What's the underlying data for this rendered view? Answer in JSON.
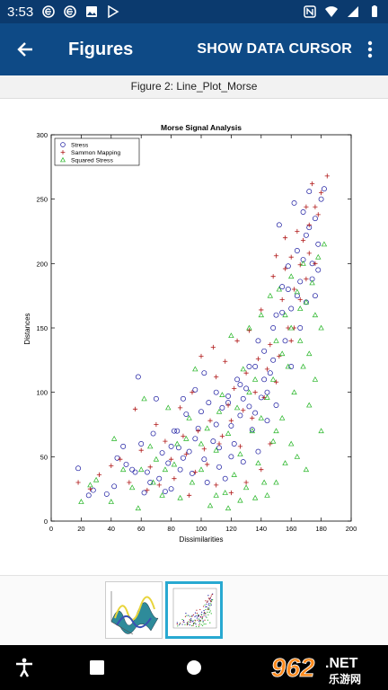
{
  "status_bar": {
    "time": "3:53",
    "left_icons": [
      "e-notification-icon",
      "e-notification-icon",
      "image-notification-icon",
      "play-store-icon"
    ],
    "right_icons": [
      "nfc-icon",
      "wifi-icon",
      "signal-icon",
      "battery-icon"
    ]
  },
  "app_bar": {
    "title": "Figures",
    "action_label": "SHOW DATA CURSOR",
    "background": "#0e4a86"
  },
  "figure": {
    "caption": "Figure 2: Line_Plot_Morse"
  },
  "chart_data": {
    "type": "scatter",
    "title": "Morse Signal Analysis",
    "xlabel": "Dissimilarities",
    "ylabel": "Distances",
    "xlim": [
      0,
      200
    ],
    "ylim": [
      0,
      300
    ],
    "xticks": [
      0,
      20,
      40,
      60,
      80,
      100,
      120,
      140,
      160,
      180,
      200
    ],
    "yticks": [
      0,
      50,
      100,
      150,
      200,
      250,
      300
    ],
    "grid": false,
    "legend": "top-left",
    "series": [
      {
        "name": "Stress",
        "marker": "circle",
        "color": "#1a1aa0",
        "points": [
          [
            18,
            41
          ],
          [
            25,
            20
          ],
          [
            28,
            24
          ],
          [
            37,
            21
          ],
          [
            42,
            27
          ],
          [
            44,
            49
          ],
          [
            50,
            44
          ],
          [
            56,
            38
          ],
          [
            58,
            112
          ],
          [
            62,
            22
          ],
          [
            66,
            30
          ],
          [
            68,
            68
          ],
          [
            70,
            95
          ],
          [
            74,
            53
          ],
          [
            76,
            23
          ],
          [
            80,
            25
          ],
          [
            82,
            70
          ],
          [
            85,
            57
          ],
          [
            88,
            49
          ],
          [
            90,
            83
          ],
          [
            94,
            37
          ],
          [
            96,
            64
          ],
          [
            100,
            85
          ],
          [
            102,
            48
          ],
          [
            105,
            92
          ],
          [
            108,
            62
          ],
          [
            110,
            75
          ],
          [
            112,
            57
          ],
          [
            114,
            88
          ],
          [
            116,
            33
          ],
          [
            118,
            97
          ],
          [
            120,
            74
          ],
          [
            122,
            60
          ],
          [
            124,
            110
          ],
          [
            126,
            82
          ],
          [
            128,
            46
          ],
          [
            130,
            103
          ],
          [
            132,
            89
          ],
          [
            134,
            71
          ],
          [
            136,
            120
          ],
          [
            138,
            54
          ],
          [
            140,
            96
          ],
          [
            142,
            132
          ],
          [
            144,
            78
          ],
          [
            146,
            115
          ],
          [
            148,
            150
          ],
          [
            150,
            160
          ],
          [
            152,
            230
          ],
          [
            154,
            182
          ],
          [
            156,
            140
          ],
          [
            158,
            198
          ],
          [
            160,
            165
          ],
          [
            162,
            247
          ],
          [
            164,
            210
          ],
          [
            166,
            186
          ],
          [
            168,
            240
          ],
          [
            170,
            222
          ],
          [
            172,
            256
          ],
          [
            174,
            200
          ],
          [
            176,
            235
          ],
          [
            178,
            215
          ],
          [
            180,
            250
          ],
          [
            182,
            258
          ],
          [
            170,
            170
          ],
          [
            166,
            150
          ],
          [
            160,
            120
          ],
          [
            150,
            90
          ],
          [
            144,
            100
          ],
          [
            136,
            84
          ],
          [
            128,
            95
          ],
          [
            120,
            50
          ],
          [
            112,
            42
          ],
          [
            104,
            30
          ],
          [
            98,
            72
          ],
          [
            92,
            54
          ],
          [
            86,
            40
          ],
          [
            80,
            58
          ],
          [
            72,
            33
          ],
          [
            64,
            38
          ],
          [
            54,
            40
          ],
          [
            48,
            58
          ],
          [
            178,
            195
          ],
          [
            176,
            175
          ],
          [
            174,
            188
          ],
          [
            172,
            228
          ],
          [
            168,
            203
          ],
          [
            164,
            175
          ],
          [
            158,
            180
          ],
          [
            154,
            162
          ],
          [
            148,
            125
          ],
          [
            142,
            110
          ],
          [
            138,
            140
          ],
          [
            132,
            120
          ],
          [
            126,
            106
          ],
          [
            118,
            92
          ],
          [
            110,
            100
          ],
          [
            102,
            115
          ],
          [
            96,
            102
          ],
          [
            88,
            95
          ],
          [
            84,
            70
          ],
          [
            78,
            45
          ],
          [
            60,
            60
          ]
        ]
      },
      {
        "name": "Sammon Mapping",
        "marker": "plus",
        "color": "#b01818",
        "points": [
          [
            18,
            30
          ],
          [
            26,
            25
          ],
          [
            32,
            36
          ],
          [
            40,
            43
          ],
          [
            46,
            48
          ],
          [
            52,
            30
          ],
          [
            56,
            87
          ],
          [
            60,
            55
          ],
          [
            66,
            42
          ],
          [
            70,
            75
          ],
          [
            76,
            62
          ],
          [
            82,
            33
          ],
          [
            86,
            88
          ],
          [
            90,
            52
          ],
          [
            94,
            100
          ],
          [
            98,
            70
          ],
          [
            102,
            56
          ],
          [
            106,
            78
          ],
          [
            110,
            112
          ],
          [
            114,
            66
          ],
          [
            118,
            90
          ],
          [
            122,
            103
          ],
          [
            126,
            58
          ],
          [
            130,
            115
          ],
          [
            134,
            80
          ],
          [
            138,
            126
          ],
          [
            142,
            96
          ],
          [
            146,
            137
          ],
          [
            150,
            108
          ],
          [
            154,
            172
          ],
          [
            156,
            196
          ],
          [
            158,
            150
          ],
          [
            160,
            205
          ],
          [
            162,
            180
          ],
          [
            164,
            225
          ],
          [
            166,
            199
          ],
          [
            168,
            218
          ],
          [
            170,
            244
          ],
          [
            172,
            230
          ],
          [
            174,
            262
          ],
          [
            176,
            244
          ],
          [
            178,
            238
          ],
          [
            180,
            255
          ],
          [
            184,
            268
          ],
          [
            172,
            208
          ],
          [
            166,
            172
          ],
          [
            160,
            140
          ],
          [
            152,
            128
          ],
          [
            144,
            118
          ],
          [
            136,
            100
          ],
          [
            128,
            86
          ],
          [
            120,
            78
          ],
          [
            112,
            60
          ],
          [
            104,
            44
          ],
          [
            96,
            38
          ],
          [
            88,
            66
          ],
          [
            80,
            48
          ],
          [
            72,
            28
          ],
          [
            64,
            24
          ],
          [
            100,
            128
          ],
          [
            108,
            135
          ],
          [
            116,
            124
          ],
          [
            124,
            140
          ],
          [
            132,
            148
          ],
          [
            140,
            164
          ],
          [
            148,
            190
          ],
          [
            150,
            206
          ],
          [
            156,
            220
          ],
          [
            162,
            150
          ],
          [
            170,
            188
          ],
          [
            176,
            200
          ],
          [
            140,
            40
          ],
          [
            146,
            60
          ],
          [
            130,
            30
          ],
          [
            120,
            22
          ],
          [
            110,
            28
          ],
          [
            92,
            20
          ]
        ]
      },
      {
        "name": "Squared Stress",
        "marker": "triangle",
        "color": "#22b422",
        "points": [
          [
            20,
            15
          ],
          [
            26,
            28
          ],
          [
            30,
            32
          ],
          [
            40,
            15
          ],
          [
            42,
            64
          ],
          [
            48,
            40
          ],
          [
            54,
            26
          ],
          [
            58,
            10
          ],
          [
            62,
            95
          ],
          [
            66,
            58
          ],
          [
            70,
            48
          ],
          [
            74,
            20
          ],
          [
            78,
            88
          ],
          [
            82,
            44
          ],
          [
            86,
            18
          ],
          [
            90,
            64
          ],
          [
            94,
            30
          ],
          [
            96,
            118
          ],
          [
            100,
            40
          ],
          [
            104,
            72
          ],
          [
            106,
            12
          ],
          [
            110,
            55
          ],
          [
            114,
            98
          ],
          [
            116,
            22
          ],
          [
            118,
            68
          ],
          [
            120,
            144
          ],
          [
            122,
            36
          ],
          [
            124,
            88
          ],
          [
            126,
            52
          ],
          [
            128,
            118
          ],
          [
            130,
            26
          ],
          [
            132,
            150
          ],
          [
            134,
            70
          ],
          [
            136,
            110
          ],
          [
            138,
            45
          ],
          [
            140,
            160
          ],
          [
            142,
            30
          ],
          [
            144,
            96
          ],
          [
            146,
            175
          ],
          [
            148,
            62
          ],
          [
            150,
            140
          ],
          [
            152,
            180
          ],
          [
            154,
            80
          ],
          [
            156,
            160
          ],
          [
            158,
            120
          ],
          [
            160,
            190
          ],
          [
            162,
            100
          ],
          [
            164,
            178
          ],
          [
            166,
            140
          ],
          [
            168,
            200
          ],
          [
            170,
            170
          ],
          [
            172,
            90
          ],
          [
            174,
            185
          ],
          [
            176,
            160
          ],
          [
            178,
            205
          ],
          [
            180,
            150
          ],
          [
            182,
            215
          ],
          [
            164,
            50
          ],
          [
            170,
            40
          ],
          [
            156,
            45
          ],
          [
            150,
            30
          ],
          [
            144,
            20
          ],
          [
            136,
            18
          ],
          [
            126,
            16
          ],
          [
            118,
            10
          ],
          [
            110,
            20
          ],
          [
            160,
            60
          ],
          [
            150,
            70
          ],
          [
            176,
            110
          ],
          [
            180,
            70
          ],
          [
            168,
            120
          ],
          [
            140,
            80
          ],
          [
            132,
            100
          ],
          [
            112,
            85
          ],
          [
            100,
            60
          ],
          [
            92,
            80
          ],
          [
            84,
            60
          ],
          [
            76,
            40
          ],
          [
            68,
            30
          ],
          [
            60,
            40
          ],
          [
            172,
            130
          ],
          [
            166,
            165
          ],
          [
            160,
            150
          ],
          [
            154,
            130
          ],
          [
            148,
            110
          ]
        ]
      }
    ]
  },
  "thumbnails": [
    {
      "name": "surface-plot-thumbnail",
      "selected": false
    },
    {
      "name": "scatter-plot-thumbnail",
      "selected": true
    }
  ],
  "watermark": {
    "brand": "962",
    "suffix": ".NET",
    "sub": "乐游网"
  }
}
